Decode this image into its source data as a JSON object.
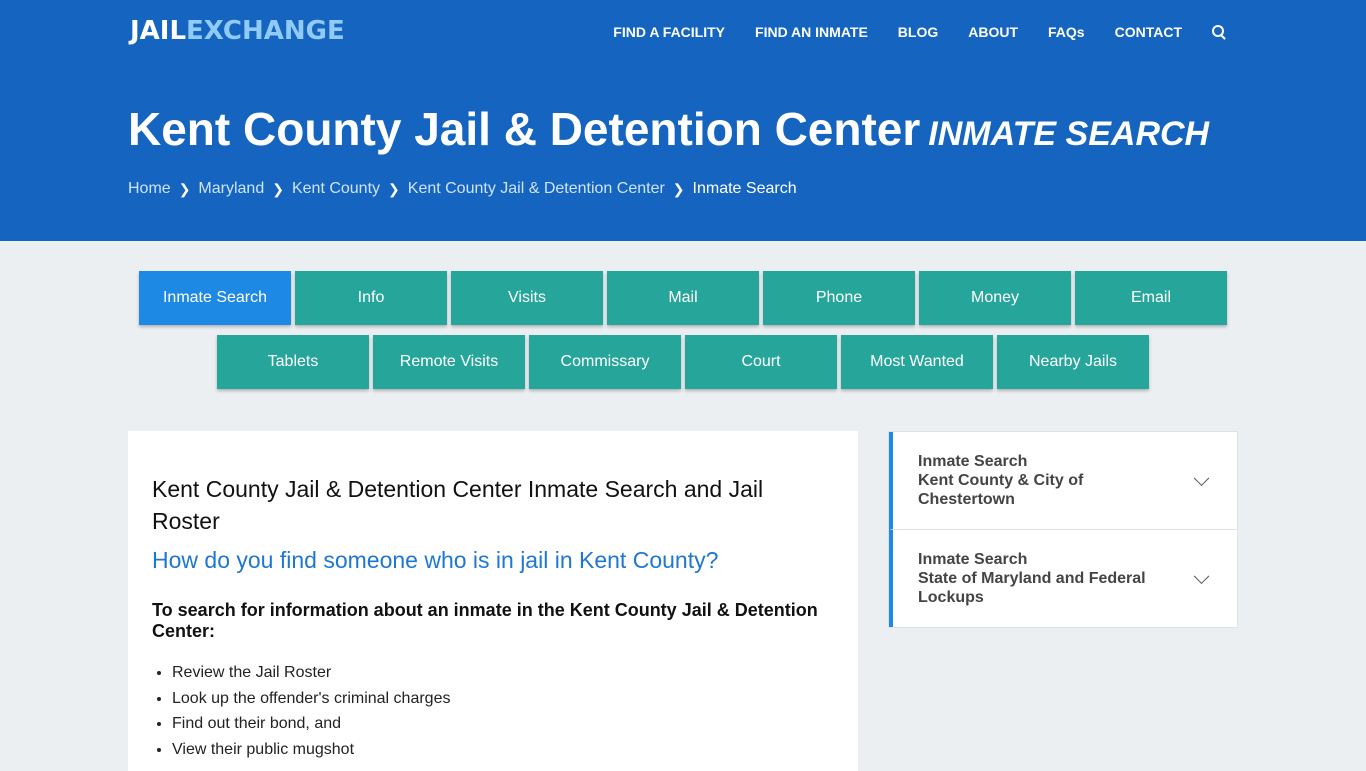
{
  "nav": {
    "logo_a": "JAIL",
    "logo_b": "EXCHANGE",
    "items": [
      "FIND A FACILITY",
      "FIND AN INMATE",
      "BLOG",
      "ABOUT",
      "FAQs",
      "CONTACT"
    ]
  },
  "hero": {
    "title": "Kent County Jail & Detention Center",
    "subtitle": "INMATE SEARCH",
    "breadcrumbs": [
      "Home",
      "Maryland",
      "Kent County",
      "Kent County Jail & Detention Center",
      "Inmate Search"
    ]
  },
  "tabs": {
    "row1": [
      "Inmate Search",
      "Info",
      "Visits",
      "Mail",
      "Phone",
      "Money",
      "Email"
    ],
    "row2": [
      "Tablets",
      "Remote Visits",
      "Commissary",
      "Court",
      "Most Wanted",
      "Nearby Jails"
    ]
  },
  "main": {
    "heading": "Kent County Jail & Detention Center Inmate Search and Jail Roster",
    "question": "How do you find someone who is in jail in Kent County?",
    "intro": "To search for information about an inmate in the Kent County Jail & Detention Center:",
    "list": [
      "Review the Jail Roster",
      "Look up the offender's criminal charges",
      "Find out their bond, and",
      "View their public mugshot"
    ]
  },
  "sidebar": [
    {
      "line1": "Inmate Search",
      "line2": "Kent County & City of Chestertown"
    },
    {
      "line1": "Inmate Search",
      "line2": "State of Maryland and Federal Lockups"
    }
  ],
  "colors": {
    "brand": "#1565c0",
    "tab": "#26a69a",
    "active": "#1e88e5"
  }
}
